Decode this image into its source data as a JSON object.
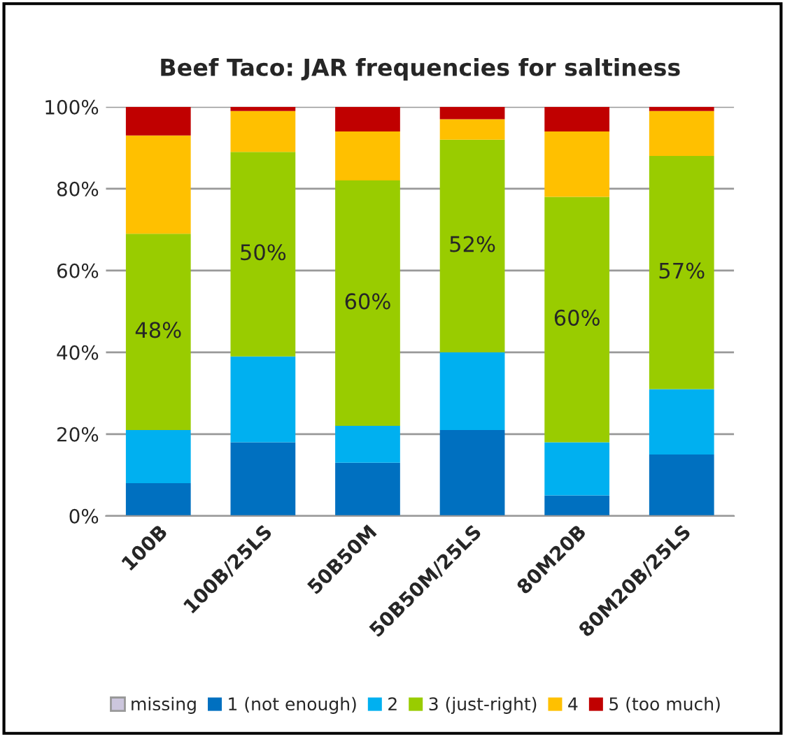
{
  "chart_data": {
    "type": "bar",
    "title": "Beef Taco: JAR frequencies for saltiness",
    "stacked": true,
    "categories": [
      "100B",
      "100B/25LS",
      "50B50M",
      "50B50M/25LS",
      "80M20B",
      "80M20B/25LS"
    ],
    "series": [
      {
        "name": "missing",
        "color": "#ccc6dd",
        "values": [
          0,
          0,
          0,
          0,
          0,
          0
        ]
      },
      {
        "name": "1 (not enough)",
        "color": "#0070c0",
        "values": [
          8,
          18,
          13,
          21,
          5,
          15
        ]
      },
      {
        "name": "2",
        "color": "#00b0f0",
        "values": [
          13,
          21,
          9,
          19,
          13,
          16
        ]
      },
      {
        "name": "3 (just-right)",
        "color": "#99cc00",
        "values": [
          48,
          50,
          60,
          52,
          60,
          57
        ],
        "value_labels": [
          "48%",
          "50%",
          "60%",
          "52%",
          "60%",
          "57%"
        ]
      },
      {
        "name": "4",
        "color": "#ffc000",
        "values": [
          24,
          10,
          12,
          5,
          16,
          11
        ]
      },
      {
        "name": "5 (too much)",
        "color": "#c00000",
        "values": [
          7,
          1,
          6,
          3,
          6,
          1
        ]
      }
    ],
    "ylim": [
      0,
      100
    ],
    "yticks": [
      {
        "value": 0,
        "label": "0%"
      },
      {
        "value": 20,
        "label": "20%"
      },
      {
        "value": 40,
        "label": "40%"
      },
      {
        "value": 60,
        "label": "60%"
      },
      {
        "value": 80,
        "label": "80%"
      },
      {
        "value": 100,
        "label": "100%"
      }
    ],
    "grid": "y",
    "legend": "bottom"
  }
}
